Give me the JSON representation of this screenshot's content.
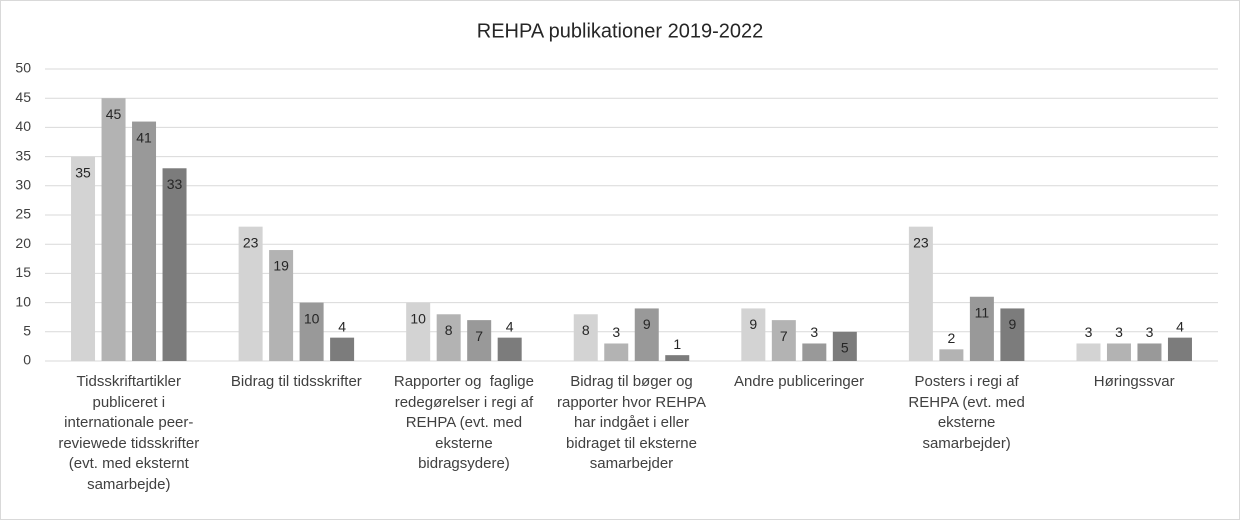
{
  "chart_data": {
    "type": "bar",
    "title": "REHPA publikationer 2019-2022",
    "categories": [
      "Tidsskriftartikler\npubliceret i\ninternationale peer-\nreviewede tidsskrifter\n(evt. med eksternt\nsamarbejde)",
      "Bidrag til tidsskrifter",
      "Rapporter og  faglige\nredegørelser i regi af\nREHPA (evt. med\neksterne\nbidragsydere)",
      "Bidrag til bøger og\nrapporter hvor REHPA\nhar indgået i eller\nbidraget til eksterne\nsamarbejder",
      "Andre publiceringer",
      "Posters i regi af\nREHPA (evt. med\neksterne\nsamarbejder)",
      "Høringssvar"
    ],
    "series": [
      {
        "color": "#d3d3d3",
        "values": [
          35,
          23,
          10,
          8,
          9,
          23,
          3
        ]
      },
      {
        "color": "#b3b3b3",
        "values": [
          45,
          19,
          8,
          3,
          7,
          2,
          3
        ]
      },
      {
        "color": "#999999",
        "values": [
          41,
          10,
          7,
          9,
          3,
          11,
          3
        ]
      },
      {
        "color": "#7c7c7c",
        "values": [
          33,
          4,
          4,
          1,
          5,
          9,
          4
        ]
      }
    ],
    "ylim": [
      0,
      50
    ],
    "yticks": [
      0,
      5,
      10,
      15,
      20,
      25,
      30,
      35,
      40,
      45,
      50
    ],
    "grid": true
  }
}
